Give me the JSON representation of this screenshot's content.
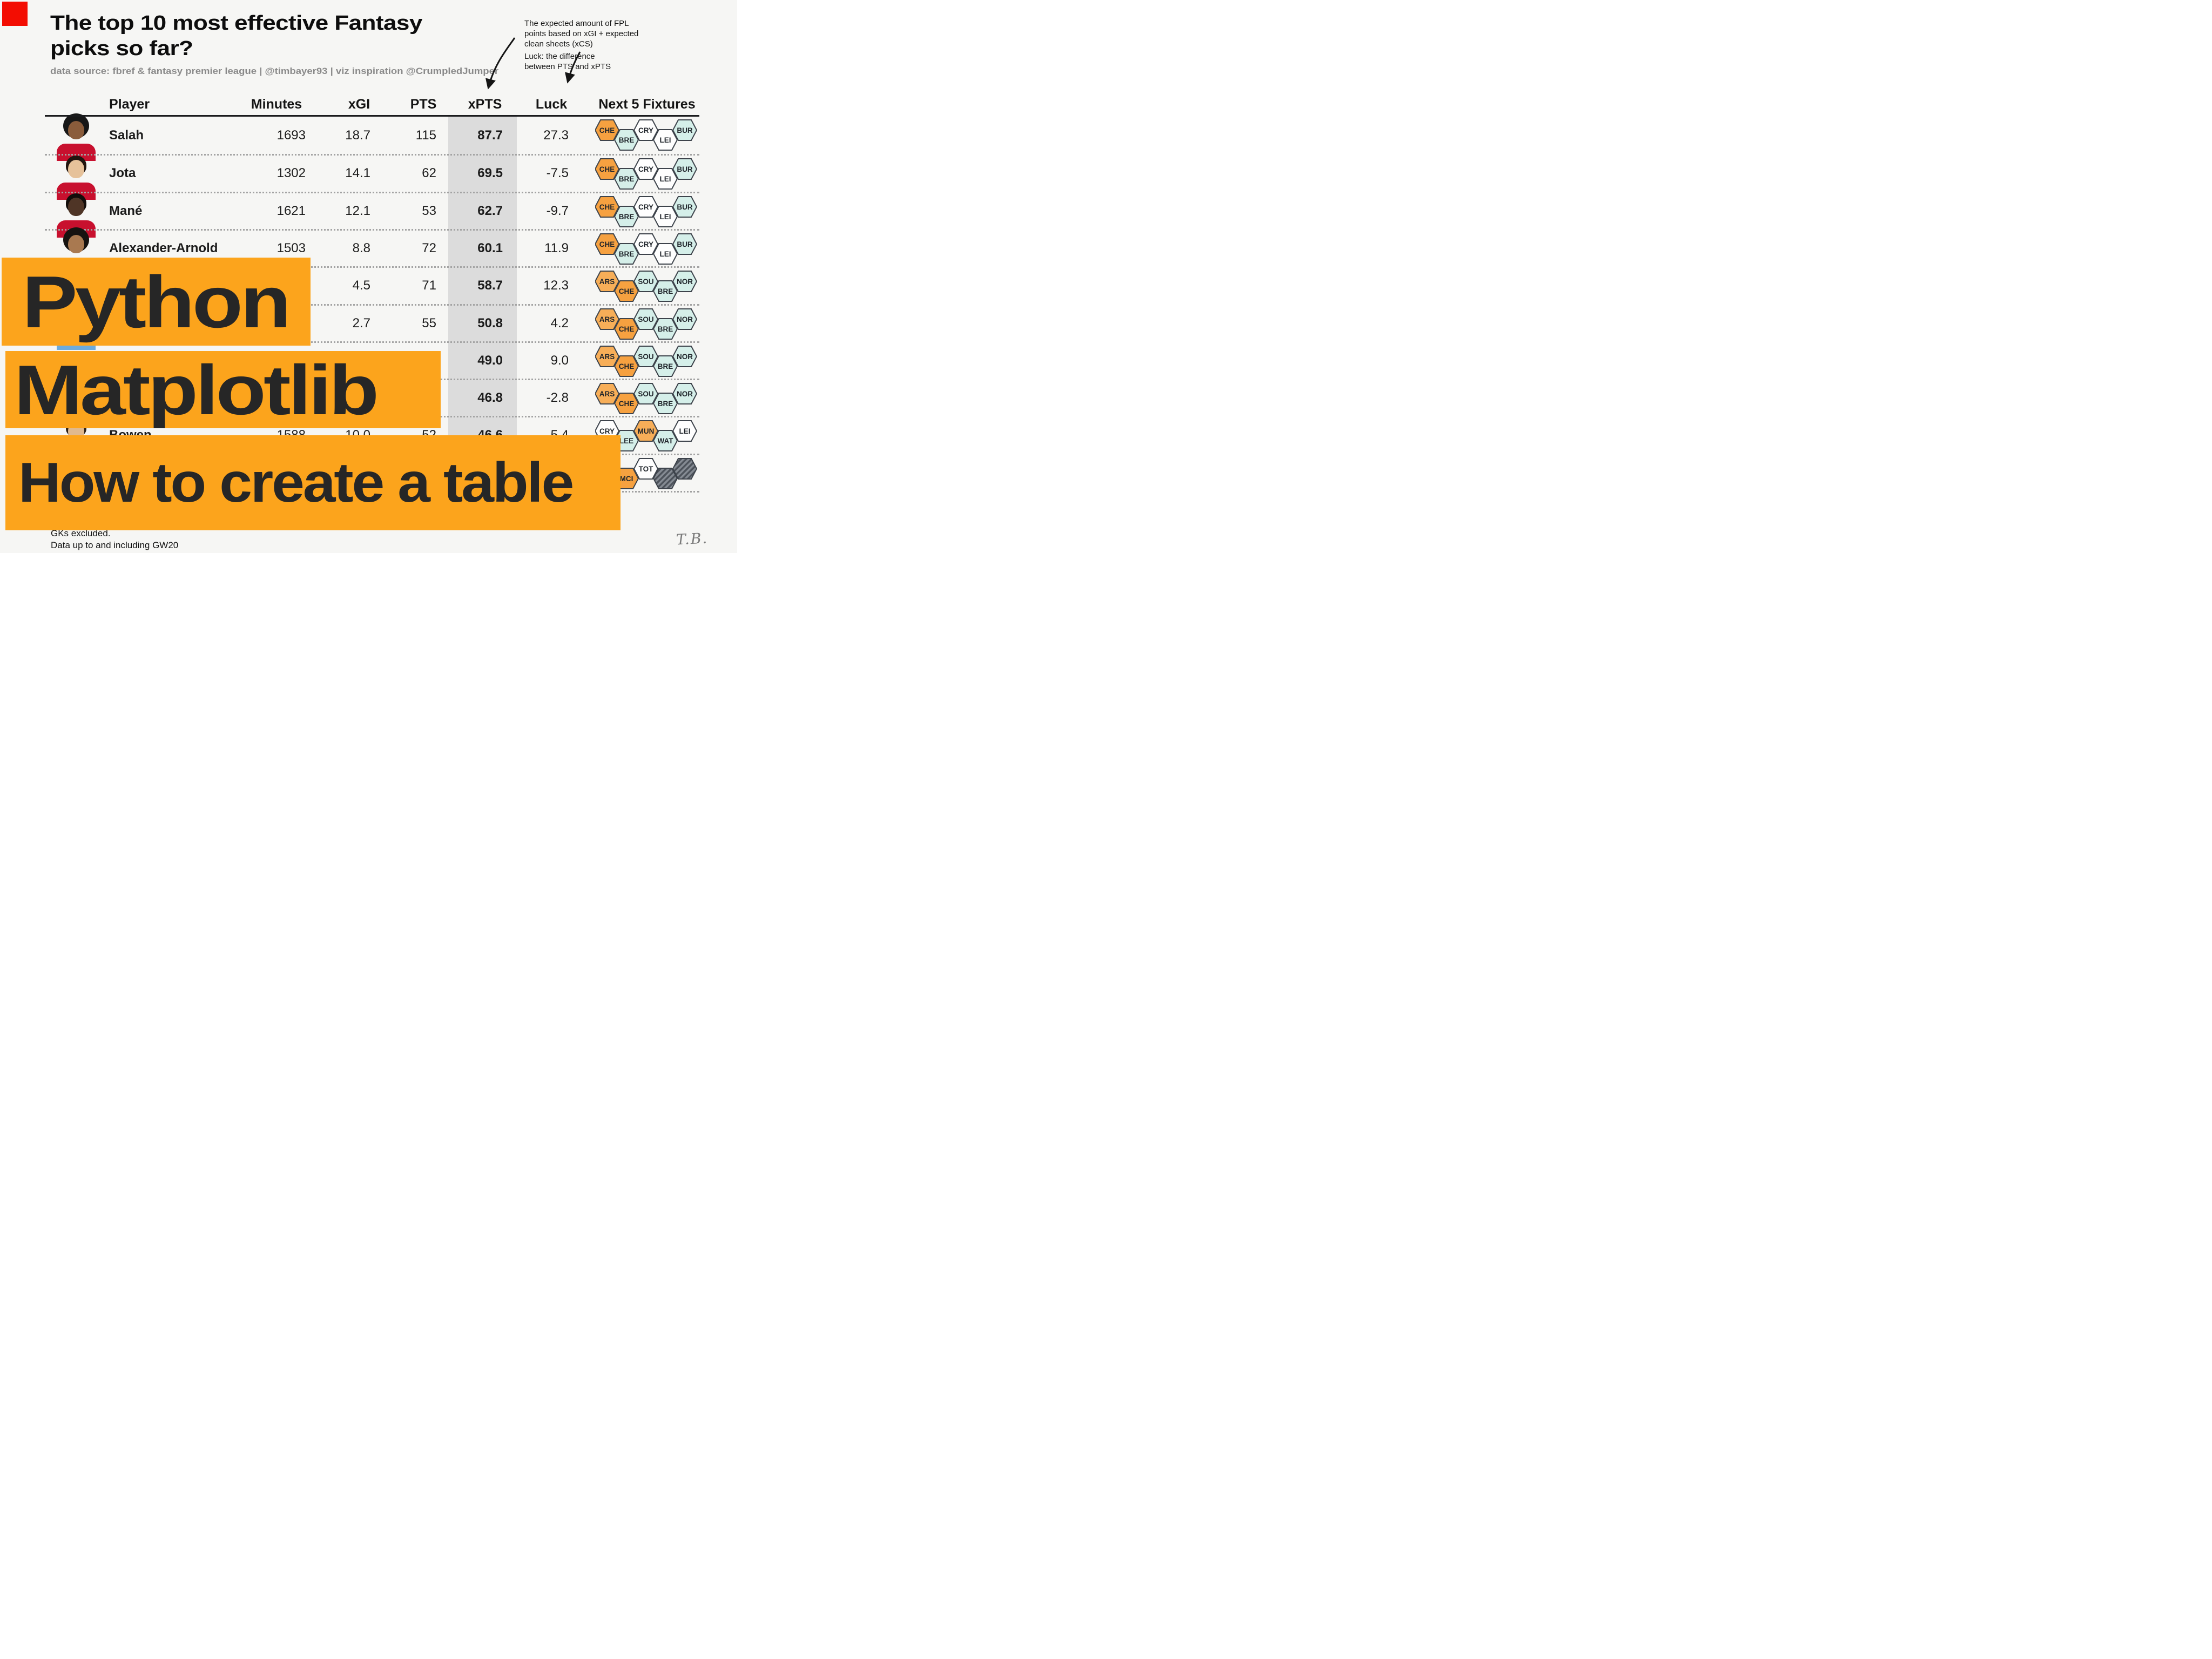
{
  "title": {
    "line1": "The top 10 most effective Fantasy",
    "line2": "picks so far?"
  },
  "subtitle": "data source: fbref & fantasy premier league | @timbayer93 | viz inspiration @CrumpledJumper",
  "annotations": {
    "xpts_note": [
      "The expected amount of FPL",
      "points based on xGI + expected",
      "clean sheets (xCS)"
    ],
    "luck_note": [
      "Luck: the difference",
      "between PTS and xPTS"
    ]
  },
  "overlay_banners": {
    "line1": "Python",
    "line2": "Matplotlib",
    "line3": "How to create a table",
    "bg": "#fca41c"
  },
  "footnotes": [
    "GKs excluded.",
    "Data up to and including GW20"
  ],
  "signature": "T.B.",
  "fixture_colors": {
    "hard": "#f6a140",
    "hard2": "#f7ae58",
    "med": "#fefefe",
    "easy": "#d5efe9",
    "blank_dark": "#4d535b",
    "blank_light": "#858b93",
    "border": "#3d434b"
  },
  "table": {
    "headers": [
      "Player",
      "Minutes",
      "xGI",
      "PTS",
      "xPTS",
      "Luck",
      "Next 5 Fixtures"
    ],
    "xpts_band_color": "#dcdcdc",
    "rows": [
      {
        "player": "Salah",
        "minutes": "1693",
        "xgi": "18.7",
        "pts": "115",
        "xpts": "87.7",
        "luck": "27.3",
        "photo_visible": true,
        "jersey": "#c8102e",
        "skin": "#8a5c3b",
        "hair": "#171717",
        "big_hair": true,
        "fixtures": [
          {
            "code": "CHE",
            "difficulty": "hard"
          },
          {
            "code": "BRE",
            "difficulty": "easy"
          },
          {
            "code": "CRY",
            "difficulty": "med"
          },
          {
            "code": "LEI",
            "difficulty": "med"
          },
          {
            "code": "BUR",
            "difficulty": "easy"
          }
        ]
      },
      {
        "player": "Jota",
        "minutes": "1302",
        "xgi": "14.1",
        "pts": "62",
        "xpts": "69.5",
        "luck": "-7.5",
        "photo_visible": true,
        "jersey": "#c8102e",
        "skin": "#e6c29a",
        "hair": "#20150f",
        "big_hair": false,
        "fixtures": [
          {
            "code": "CHE",
            "difficulty": "hard"
          },
          {
            "code": "BRE",
            "difficulty": "easy"
          },
          {
            "code": "CRY",
            "difficulty": "med"
          },
          {
            "code": "LEI",
            "difficulty": "med"
          },
          {
            "code": "BUR",
            "difficulty": "easy"
          }
        ]
      },
      {
        "player": "Mané",
        "minutes": "1621",
        "xgi": "12.1",
        "pts": "53",
        "xpts": "62.7",
        "luck": "-9.7",
        "photo_visible": true,
        "jersey": "#c8102e",
        "skin": "#4f3526",
        "hair": "#120d0a",
        "big_hair": false,
        "fixtures": [
          {
            "code": "CHE",
            "difficulty": "hard"
          },
          {
            "code": "BRE",
            "difficulty": "easy"
          },
          {
            "code": "CRY",
            "difficulty": "med"
          },
          {
            "code": "LEI",
            "difficulty": "med"
          },
          {
            "code": "BUR",
            "difficulty": "easy"
          }
        ]
      },
      {
        "player": "Alexander-Arnold",
        "minutes": "1503",
        "xgi": "8.8",
        "pts": "72",
        "xpts": "60.1",
        "luck": "11.9",
        "photo_visible": true,
        "jersey": "#c8102e",
        "skin": "#a97950",
        "hair": "#171310",
        "big_hair": true,
        "fixtures": [
          {
            "code": "CHE",
            "difficulty": "hard"
          },
          {
            "code": "BRE",
            "difficulty": "easy"
          },
          {
            "code": "CRY",
            "difficulty": "med"
          },
          {
            "code": "LEI",
            "difficulty": "med"
          },
          {
            "code": "BUR",
            "difficulty": "easy"
          }
        ]
      },
      {
        "player": "",
        "minutes": "",
        "xgi": "4.5",
        "pts": "71",
        "xpts": "58.7",
        "luck": "12.3",
        "photo_visible": false,
        "jersey": "",
        "skin": "",
        "hair": "",
        "big_hair": false,
        "fixtures": [
          {
            "code": "ARS",
            "difficulty": "hard2"
          },
          {
            "code": "CHE",
            "difficulty": "hard"
          },
          {
            "code": "SOU",
            "difficulty": "easy"
          },
          {
            "code": "BRE",
            "difficulty": "easy"
          },
          {
            "code": "NOR",
            "difficulty": "easy"
          }
        ]
      },
      {
        "player": "",
        "minutes": "",
        "xgi": "2.7",
        "pts": "55",
        "xpts": "50.8",
        "luck": "4.2",
        "photo_visible": true,
        "jersey": "#6cabdd",
        "skin": "#e6c29a",
        "hair": "#242424",
        "big_hair": false,
        "fixtures": [
          {
            "code": "ARS",
            "difficulty": "hard2"
          },
          {
            "code": "CHE",
            "difficulty": "hard"
          },
          {
            "code": "SOU",
            "difficulty": "easy"
          },
          {
            "code": "BRE",
            "difficulty": "easy"
          },
          {
            "code": "NOR",
            "difficulty": "easy"
          }
        ]
      },
      {
        "player": "",
        "minutes": "",
        "xgi": "",
        "pts": "",
        "xpts": "49.0",
        "luck": "9.0",
        "photo_visible": false,
        "jersey": "",
        "skin": "",
        "hair": "",
        "big_hair": false,
        "fixtures": [
          {
            "code": "ARS",
            "difficulty": "hard2"
          },
          {
            "code": "CHE",
            "difficulty": "hard"
          },
          {
            "code": "SOU",
            "difficulty": "easy"
          },
          {
            "code": "BRE",
            "difficulty": "easy"
          },
          {
            "code": "NOR",
            "difficulty": "easy"
          }
        ]
      },
      {
        "player": "",
        "minutes": "",
        "xgi": "",
        "pts": "",
        "xpts": "46.8",
        "luck": "-2.8",
        "photo_visible": false,
        "jersey": "",
        "skin": "",
        "hair": "",
        "big_hair": false,
        "fixtures": [
          {
            "code": "ARS",
            "difficulty": "hard2"
          },
          {
            "code": "CHE",
            "difficulty": "hard"
          },
          {
            "code": "SOU",
            "difficulty": "easy"
          },
          {
            "code": "BRE",
            "difficulty": "easy"
          },
          {
            "code": "NOR",
            "difficulty": "easy"
          }
        ]
      },
      {
        "player": "Bowen",
        "minutes": "1588",
        "xgi": "10.0",
        "pts": "52",
        "xpts": "46.6",
        "luck": "5.4",
        "photo_visible": true,
        "jersey": "#7a263a",
        "skin": "#e0b98f",
        "hair": "#2e2014",
        "big_hair": false,
        "fixtures": [
          {
            "code": "CRY",
            "difficulty": "med"
          },
          {
            "code": "LEE",
            "difficulty": "easy"
          },
          {
            "code": "MUN",
            "difficulty": "hard2"
          },
          {
            "code": "WAT",
            "difficulty": "easy"
          },
          {
            "code": "LEI",
            "difficulty": "med"
          }
        ]
      },
      {
        "player": "",
        "minutes": "",
        "xgi": "",
        "pts": "",
        "xpts": "",
        "luck": "",
        "photo_visible": false,
        "jersey": "",
        "skin": "",
        "hair": "",
        "big_hair": false,
        "fixtures": [
          {
            "code": "",
            "difficulty": "med"
          },
          {
            "code": "MCI",
            "difficulty": "hard"
          },
          {
            "code": "TOT",
            "difficulty": "med"
          },
          {
            "code": "",
            "difficulty": "blank"
          },
          {
            "code": "",
            "difficulty": "blank"
          }
        ]
      }
    ]
  },
  "chart_data": {
    "type": "table",
    "title": "The top 10 most effective Fantasy picks so far?",
    "columns": [
      "Player",
      "Minutes",
      "xGI",
      "PTS",
      "xPTS",
      "Luck",
      "Next 5 Fixtures"
    ],
    "rows": [
      [
        "Salah",
        1693,
        18.7,
        115,
        87.7,
        27.3,
        "CHE(hard) BRE(easy) CRY(med) LEI(med) BUR(easy)"
      ],
      [
        "Jota",
        1302,
        14.1,
        62,
        69.5,
        -7.5,
        "CHE(hard) BRE(easy) CRY(med) LEI(med) BUR(easy)"
      ],
      [
        "Mané",
        1621,
        12.1,
        53,
        62.7,
        -9.7,
        "CHE(hard) BRE(easy) CRY(med) LEI(med) BUR(easy)"
      ],
      [
        "Alexander-Arnold",
        1503,
        8.8,
        72,
        60.1,
        11.9,
        "CHE(hard) BRE(easy) CRY(med) LEI(med) BUR(easy)"
      ],
      [
        null,
        null,
        4.5,
        71,
        58.7,
        12.3,
        "ARS(hard) CHE(hard) SOU(easy) BRE(easy) NOR(easy)"
      ],
      [
        null,
        null,
        2.7,
        55,
        50.8,
        4.2,
        "ARS(hard) CHE(hard) SOU(easy) BRE(easy) NOR(easy)"
      ],
      [
        null,
        null,
        null,
        null,
        49.0,
        9.0,
        "ARS(hard) CHE(hard) SOU(easy) BRE(easy) NOR(easy)"
      ],
      [
        null,
        null,
        null,
        null,
        46.8,
        -2.8,
        "ARS(hard) CHE(hard) SOU(easy) BRE(easy) NOR(easy)"
      ],
      [
        "Bowen",
        1588,
        10.0,
        52,
        46.6,
        5.4,
        "CRY(med) LEE(easy) MUN(hard) WAT(easy) LEI(med)"
      ],
      [
        null,
        null,
        null,
        null,
        null,
        null,
        "?(med) MCI(hard) TOT(med) blank blank"
      ]
    ],
    "notes": [
      "xPTS column highlighted with gray band",
      "rows 5-8 and 10 partially covered by overlay banners"
    ]
  }
}
